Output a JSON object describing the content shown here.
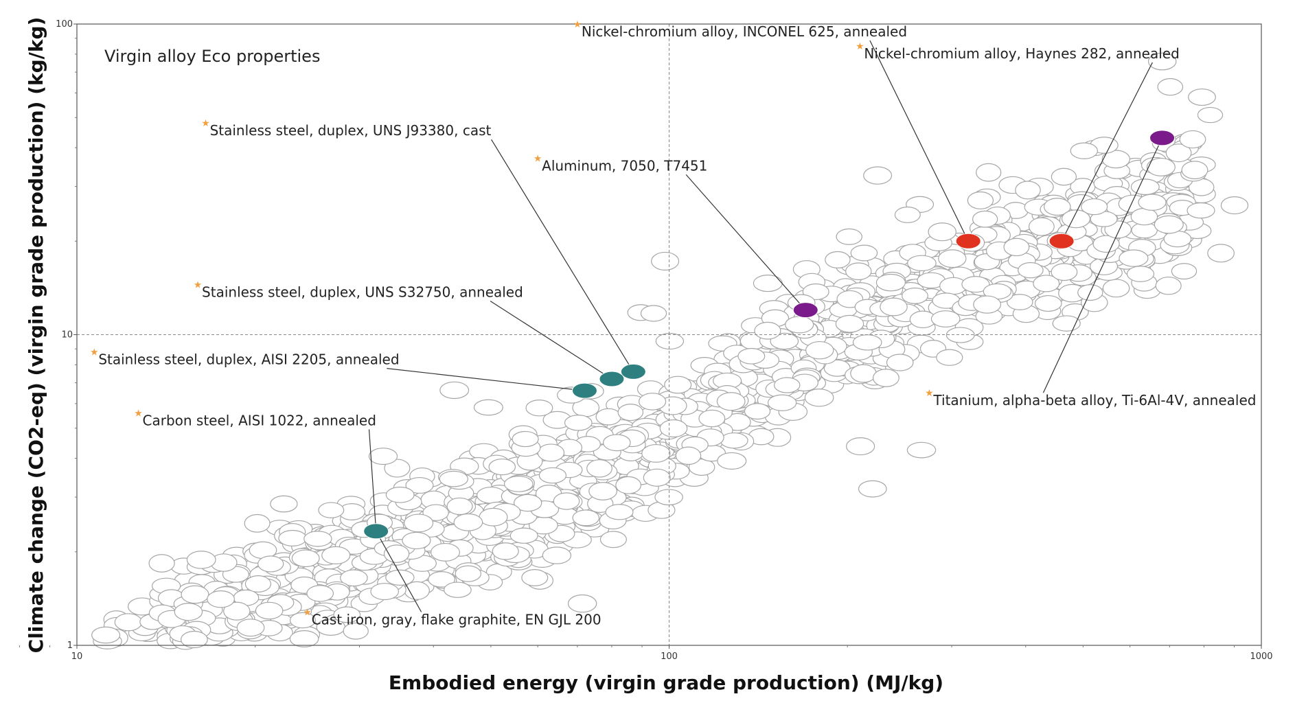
{
  "chart_data": {
    "type": "scatter",
    "title": "Virgin alloy Eco properties",
    "xlabel": "Embodied energy (virgin grade production) (MJ/kg)",
    "ylabel": "Climate change (CO2-eq) (virgin grade production) (kg/kg)",
    "x_scale": "log",
    "y_scale": "log",
    "xlim": [
      10,
      1000
    ],
    "ylim": [
      1,
      100
    ],
    "x_ticks": [
      "10",
      "100",
      "1000"
    ],
    "y_ticks": [
      "1",
      "10",
      "100"
    ],
    "grid": false,
    "reference_lines": {
      "x": 100,
      "y": 10
    },
    "colors": {
      "background_points": "#ffffff",
      "background_stroke": "#a6a6a6",
      "teal": "#2e7f80",
      "purple": "#7b1a8a",
      "red": "#e0321e",
      "star": "#f0a040"
    },
    "highlighted": [
      {
        "label": "Nickel-chromium alloy, INCONEL 625, annealed",
        "x": 320,
        "y": 20,
        "color": "red",
        "label_x": 70,
        "label_y": 100
      },
      {
        "label": "Nickel-chromium alloy, Haynes 282, annealed",
        "x": 460,
        "y": 20,
        "color": "red",
        "label_x": 210,
        "label_y": 85
      },
      {
        "label": "Stainless steel, duplex, UNS J93380, cast",
        "x": 87,
        "y": 7.6,
        "color": "teal",
        "label_x": 16.5,
        "label_y": 48
      },
      {
        "label": "Aluminum, 7050, T7451",
        "x": 170,
        "y": 12,
        "color": "purple",
        "label_x": 60,
        "label_y": 37
      },
      {
        "label": "Stainless steel, duplex, UNS S32750, annealed",
        "x": 80,
        "y": 7.2,
        "color": "teal",
        "label_x": 16,
        "label_y": 14.5
      },
      {
        "label": "Stainless steel, duplex, AISI 2205, annealed",
        "x": 72,
        "y": 6.6,
        "color": "teal",
        "label_x": 10.7,
        "label_y": 8.8
      },
      {
        "label": "Carbon steel, AISI 1022, annealed",
        "x": 32,
        "y": 2.33,
        "color": "teal",
        "label_x": 12.7,
        "label_y": 5.6
      },
      {
        "label": "Titanium, alpha-beta alloy, Ti-6Al-4V, annealed",
        "x": 680,
        "y": 43,
        "color": "purple",
        "label_x": 275,
        "label_y": 6.5
      },
      {
        "label": "Cast iron, gray, flake graphite, EN GJL 200",
        "x": 32,
        "y": 2.33,
        "color": "teal",
        "label_x": 24.5,
        "label_y": 1.28
      }
    ]
  }
}
